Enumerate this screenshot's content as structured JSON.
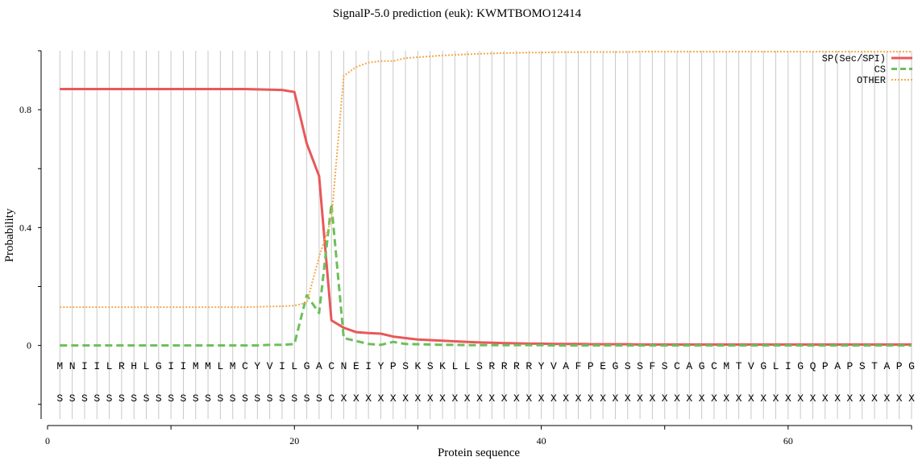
{
  "chart_data": {
    "type": "line",
    "title": "SignalP-5.0 prediction (euk):  KWMTBOMO12414",
    "xlabel": "Protein sequence",
    "ylabel": "Probability",
    "xlim": [
      0,
      70
    ],
    "ylim": [
      -0.25,
      1.0
    ],
    "x_ticks": [
      "0",
      "20",
      "40",
      "60"
    ],
    "y_ticks": [
      "0",
      "0.4",
      "0.8"
    ],
    "legend_position": "top-right",
    "sequence": [
      "M",
      "N",
      "I",
      "I",
      "L",
      "R",
      "H",
      "L",
      "G",
      "I",
      "I",
      "M",
      "M",
      "L",
      "M",
      "C",
      "Y",
      "V",
      "I",
      "L",
      "G",
      "A",
      "C",
      "N",
      "E",
      "I",
      "Y",
      "P",
      "S",
      "K",
      "S",
      "K",
      "L",
      "L",
      "S",
      "R",
      "R",
      "R",
      "R",
      "Y",
      "V",
      "A",
      "F",
      "P",
      "E",
      "G",
      "S",
      "S",
      "F",
      "S",
      "C",
      "A",
      "G",
      "C",
      "M",
      "T",
      "V",
      "G",
      "L",
      "I",
      "G",
      "Q",
      "P",
      "A",
      "P",
      "S",
      "T",
      "A",
      "P",
      "G"
    ],
    "labels": [
      "S",
      "S",
      "S",
      "S",
      "S",
      "S",
      "S",
      "S",
      "S",
      "S",
      "S",
      "S",
      "S",
      "S",
      "S",
      "S",
      "S",
      "S",
      "S",
      "S",
      "S",
      "S",
      "C",
      "X",
      "X",
      "X",
      "X",
      "X",
      "X",
      "X",
      "X",
      "X",
      "X",
      "X",
      "X",
      "X",
      "X",
      "X",
      "X",
      "X",
      "X",
      "X",
      "X",
      "X",
      "X",
      "X",
      "X",
      "X",
      "X",
      "X",
      "X",
      "X",
      "X",
      "X",
      "X",
      "X",
      "X",
      "X",
      "X",
      "X",
      "X",
      "X",
      "X",
      "X",
      "X",
      "X",
      "X",
      "X",
      "X",
      "X"
    ],
    "series": [
      {
        "name": "SP(Sec/SPI)",
        "color": "#e8585a",
        "style": "solid",
        "values": [
          0.87,
          0.87,
          0.87,
          0.87,
          0.87,
          0.87,
          0.87,
          0.87,
          0.87,
          0.87,
          0.87,
          0.87,
          0.87,
          0.87,
          0.87,
          0.87,
          0.869,
          0.868,
          0.867,
          0.86,
          0.685,
          0.575,
          0.085,
          0.06,
          0.045,
          0.042,
          0.04,
          0.03,
          0.025,
          0.02,
          0.018,
          0.016,
          0.014,
          0.012,
          0.01,
          0.009,
          0.008,
          0.007,
          0.006,
          0.006,
          0.005,
          0.005,
          0.005,
          0.004,
          0.004,
          0.004,
          0.004,
          0.003,
          0.003,
          0.003,
          0.003,
          0.003,
          0.003,
          0.003,
          0.003,
          0.003,
          0.003,
          0.003,
          0.003,
          0.003,
          0.003,
          0.003,
          0.003,
          0.003,
          0.003,
          0.003,
          0.003,
          0.003,
          0.003,
          0.003
        ]
      },
      {
        "name": "CS",
        "color": "#6cbf5a",
        "style": "dashed",
        "values": [
          0.0,
          0.0,
          0.0,
          0.0,
          0.0,
          0.0,
          0.0,
          0.0,
          0.0,
          0.0,
          0.0,
          0.0,
          0.0,
          0.0,
          0.0,
          0.0,
          0.0,
          0.002,
          0.002,
          0.005,
          0.17,
          0.11,
          0.48,
          0.025,
          0.015,
          0.005,
          0.002,
          0.012,
          0.005,
          0.004,
          0.003,
          0.002,
          0.002,
          0.001,
          0.001,
          0.001,
          0.001,
          0.001,
          0.001,
          0.001,
          0.0,
          0.0,
          0.0,
          0.0,
          0.0,
          0.0,
          0.0,
          0.0,
          0.0,
          0.0,
          0.0,
          0.0,
          0.0,
          0.0,
          0.0,
          0.0,
          0.0,
          0.0,
          0.0,
          0.0,
          0.0,
          0.0,
          0.0,
          0.0,
          0.0,
          0.0,
          0.0,
          0.0,
          0.0,
          0.0
        ]
      },
      {
        "name": "OTHER",
        "color": "#f5a94a",
        "style": "dotted",
        "values": [
          0.13,
          0.13,
          0.13,
          0.13,
          0.13,
          0.13,
          0.13,
          0.13,
          0.13,
          0.13,
          0.13,
          0.13,
          0.13,
          0.13,
          0.13,
          0.13,
          0.131,
          0.132,
          0.133,
          0.135,
          0.145,
          0.3,
          0.43,
          0.915,
          0.945,
          0.96,
          0.965,
          0.965,
          0.975,
          0.978,
          0.981,
          0.984,
          0.986,
          0.988,
          0.99,
          0.991,
          0.992,
          0.993,
          0.994,
          0.994,
          0.995,
          0.995,
          0.995,
          0.996,
          0.996,
          0.996,
          0.996,
          0.997,
          0.997,
          0.997,
          0.997,
          0.997,
          0.997,
          0.997,
          0.997,
          0.997,
          0.997,
          0.997,
          0.997,
          0.997,
          0.997,
          0.997,
          0.997,
          0.997,
          0.997,
          0.997,
          0.997,
          0.997,
          0.997,
          0.997
        ]
      }
    ]
  }
}
